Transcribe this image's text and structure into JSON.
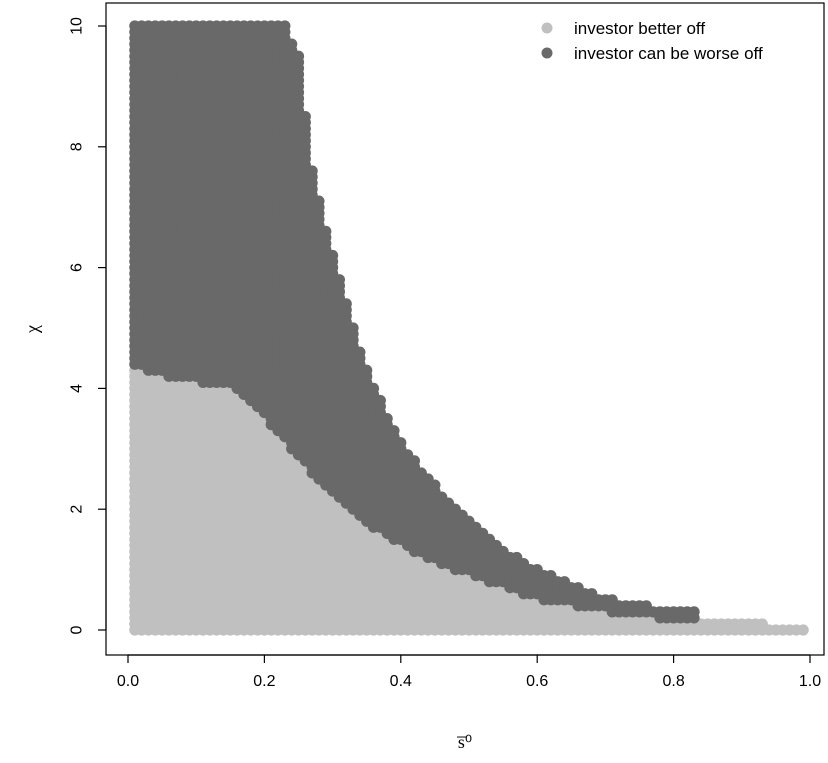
{
  "chart_data": {
    "type": "scatter",
    "title": "",
    "xlabel": "s̅⁰",
    "ylabel": "χ",
    "xlim": [
      0.0,
      1.0
    ],
    "ylim": [
      0,
      10
    ],
    "xticks": [
      "0.0",
      "0.2",
      "0.4",
      "0.6",
      "0.8",
      "1.0"
    ],
    "yticks": [
      "0",
      "2",
      "4",
      "6",
      "8",
      "10"
    ],
    "legend": {
      "position": "top-right",
      "entries": [
        {
          "label": "investor better off",
          "color": "#c0c0c0"
        },
        {
          "label": "investor can be worse off",
          "color": "#696969"
        }
      ]
    },
    "grid_step": {
      "x": 0.01,
      "y": 0.1
    },
    "series": [
      {
        "name": "investor better off",
        "color": "#c0c0c0",
        "region": "0 <= y <= upper(x)",
        "upper_boundary": [
          {
            "x": 0.01,
            "y": 4.35
          },
          {
            "x": 0.05,
            "y": 4.2
          },
          {
            "x": 0.1,
            "y": 4.1
          },
          {
            "x": 0.15,
            "y": 4.05
          },
          {
            "x": 0.2,
            "y": 3.5
          },
          {
            "x": 0.25,
            "y": 2.85
          },
          {
            "x": 0.3,
            "y": 2.2
          },
          {
            "x": 0.35,
            "y": 1.75
          },
          {
            "x": 0.4,
            "y": 1.4
          },
          {
            "x": 0.45,
            "y": 1.1
          },
          {
            "x": 0.5,
            "y": 0.9
          },
          {
            "x": 0.55,
            "y": 0.7
          },
          {
            "x": 0.6,
            "y": 0.5
          },
          {
            "x": 0.65,
            "y": 0.4
          },
          {
            "x": 0.7,
            "y": 0.3
          },
          {
            "x": 0.75,
            "y": 0.22
          },
          {
            "x": 0.8,
            "y": 0.18
          },
          {
            "x": 0.85,
            "y": 0.15
          },
          {
            "x": 0.9,
            "y": 0.12
          },
          {
            "x": 0.93,
            "y": 0.1
          },
          {
            "x": 0.95,
            "y": 0.05
          },
          {
            "x": 0.99,
            "y": 0.0
          }
        ]
      },
      {
        "name": "investor can be worse off",
        "color": "#696969",
        "region": "upper(better off) < y <= upper(x)",
        "upper_boundary": [
          {
            "x": 0.01,
            "y": 10.0
          },
          {
            "x": 0.23,
            "y": 10.0
          },
          {
            "x": 0.25,
            "y": 9.5
          },
          {
            "x": 0.27,
            "y": 7.6
          },
          {
            "x": 0.3,
            "y": 6.2
          },
          {
            "x": 0.35,
            "y": 4.3
          },
          {
            "x": 0.4,
            "y": 3.1
          },
          {
            "x": 0.45,
            "y": 2.4
          },
          {
            "x": 0.5,
            "y": 1.8
          },
          {
            "x": 0.55,
            "y": 1.35
          },
          {
            "x": 0.6,
            "y": 1.0
          },
          {
            "x": 0.65,
            "y": 0.75
          },
          {
            "x": 0.7,
            "y": 0.55
          },
          {
            "x": 0.75,
            "y": 0.42
          },
          {
            "x": 0.8,
            "y": 0.32
          },
          {
            "x": 0.83,
            "y": 0.3
          }
        ]
      }
    ]
  }
}
